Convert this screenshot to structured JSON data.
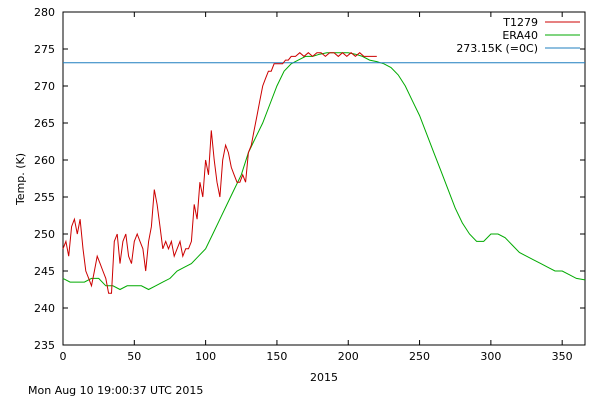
{
  "chart_data": {
    "type": "line",
    "title": "",
    "xlabel": "2015",
    "ylabel": "Temp. (K)",
    "xlim": [
      0,
      366
    ],
    "ylim": [
      235,
      280
    ],
    "xticks": [
      0,
      50,
      100,
      150,
      200,
      250,
      300,
      350
    ],
    "yticks": [
      235,
      240,
      245,
      250,
      255,
      260,
      265,
      270,
      275,
      280
    ],
    "grid": false,
    "legend_position": "top-right",
    "series": [
      {
        "name": "T1279",
        "color": "#cc0000",
        "x": [
          0,
          2,
          4,
          6,
          8,
          10,
          12,
          14,
          16,
          18,
          20,
          22,
          24,
          26,
          28,
          30,
          32,
          34,
          36,
          38,
          40,
          42,
          44,
          46,
          48,
          50,
          52,
          54,
          56,
          58,
          60,
          62,
          64,
          66,
          68,
          70,
          72,
          74,
          76,
          78,
          80,
          82,
          84,
          86,
          88,
          90,
          92,
          94,
          96,
          98,
          100,
          102,
          104,
          106,
          108,
          110,
          112,
          114,
          116,
          118,
          120,
          122,
          124,
          126,
          128,
          130,
          132,
          134,
          136,
          138,
          140,
          142,
          144,
          146,
          148,
          150,
          152,
          154,
          156,
          158,
          160,
          163,
          166,
          169,
          172,
          175,
          178,
          181,
          184,
          187,
          190,
          193,
          196,
          199,
          202,
          205,
          208,
          211,
          214,
          217,
          220
        ],
        "y": [
          248,
          249,
          247,
          251,
          252,
          250,
          252,
          248,
          245,
          244,
          243,
          245,
          247,
          246,
          245,
          244,
          242,
          242,
          249,
          250,
          246,
          249,
          250,
          247,
          246,
          249,
          250,
          249,
          248,
          245,
          249,
          251,
          256,
          254,
          251,
          248,
          249,
          248,
          249,
          247,
          248,
          249,
          247,
          248,
          248,
          249,
          254,
          252,
          257,
          255,
          260,
          258,
          264,
          260,
          257,
          255,
          260,
          262,
          261,
          259,
          258,
          257,
          257,
          258,
          257,
          261,
          262,
          264,
          266,
          268,
          270,
          271,
          272,
          272,
          273,
          273,
          273,
          273,
          273.5,
          273.5,
          274,
          274,
          274.5,
          274,
          274.5,
          274,
          274.5,
          274.5,
          274,
          274.5,
          274.5,
          274,
          274.5,
          274,
          274.5,
          274,
          274.5,
          274,
          274,
          274,
          274
        ]
      },
      {
        "name": "ERA40",
        "color": "#00aa00",
        "x": [
          0,
          5,
          10,
          15,
          20,
          25,
          30,
          35,
          40,
          45,
          50,
          55,
          60,
          65,
          70,
          75,
          80,
          85,
          90,
          95,
          100,
          105,
          110,
          115,
          120,
          125,
          130,
          135,
          140,
          145,
          150,
          155,
          160,
          165,
          170,
          175,
          180,
          185,
          190,
          195,
          200,
          205,
          210,
          215,
          220,
          225,
          230,
          235,
          240,
          245,
          250,
          255,
          260,
          265,
          270,
          275,
          280,
          285,
          290,
          295,
          300,
          305,
          310,
          315,
          320,
          325,
          330,
          335,
          340,
          345,
          350,
          355,
          360,
          366
        ],
        "y": [
          244,
          243.5,
          243.5,
          243.5,
          244,
          244,
          243,
          243,
          242.5,
          243,
          243,
          243,
          242.5,
          243,
          243.5,
          244,
          245,
          245.5,
          246,
          247,
          248,
          250,
          252,
          254,
          256,
          258,
          261,
          263,
          265,
          267.5,
          270,
          272,
          273,
          273.5,
          274,
          274,
          274.3,
          274.5,
          274.5,
          274.5,
          274.5,
          274.3,
          274,
          273.5,
          273.3,
          273,
          272.5,
          271.5,
          270,
          268,
          266,
          263.5,
          261,
          258.5,
          256,
          253.5,
          251.5,
          250,
          249,
          249,
          250,
          250,
          249.5,
          248.5,
          247.5,
          247,
          246.5,
          246,
          245.5,
          245,
          245,
          244.5,
          244,
          243.8
        ]
      },
      {
        "name": "273.15K (=0C)",
        "color": "#1f7fbf",
        "x": [
          0,
          366
        ],
        "y": [
          273.15,
          273.15
        ]
      }
    ]
  },
  "footer": {
    "timestamp": "Mon Aug 10 19:00:37 UTC 2015"
  }
}
